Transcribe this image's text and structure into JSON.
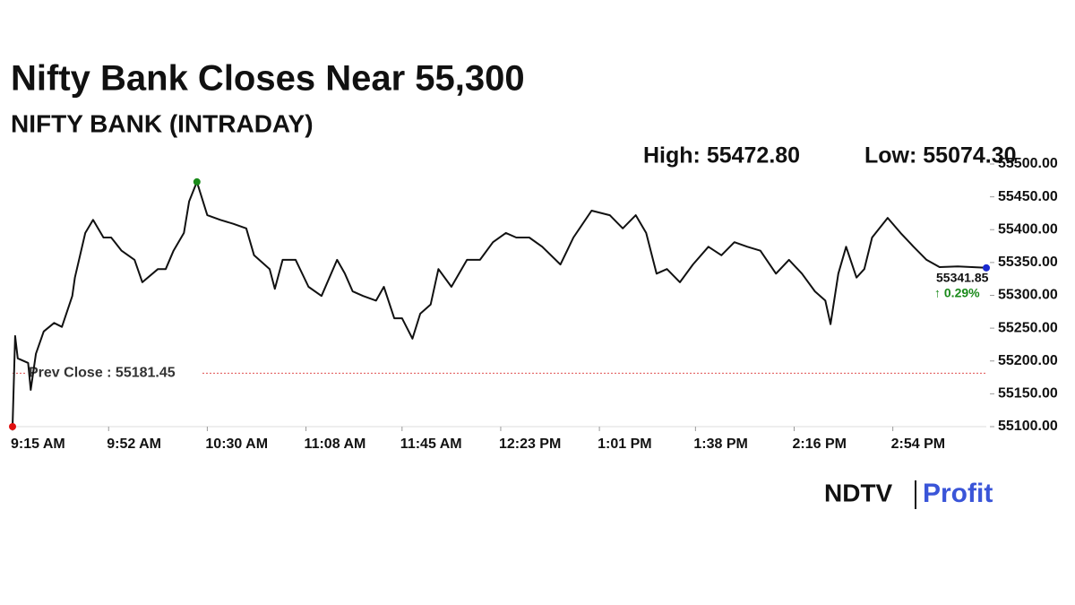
{
  "chart_data": {
    "type": "line",
    "title": "Nifty Bank Closes Near 55,300",
    "subtitle": "NIFTY BANK (INTRADAY)",
    "high_label": "High: 55472.80",
    "low_label": "Low: 55074.30",
    "last_label": "55341.85",
    "change_label": "↑ 0.29%",
    "reference": {
      "label": "Prev Close : 55181.45",
      "value": 55181.45,
      "color": "#e05050"
    },
    "color": "#111111",
    "x": [
      555,
      556,
      557,
      561,
      562,
      564,
      567,
      571,
      574,
      578,
      579,
      583,
      586,
      590,
      593,
      597,
      602,
      605,
      611,
      614,
      617,
      621,
      623,
      626,
      630,
      635,
      640,
      645,
      648,
      654,
      656,
      659,
      664,
      669,
      674,
      680,
      683,
      686,
      690,
      695,
      698,
      702,
      705,
      709,
      712,
      716,
      719,
      724,
      730,
      735,
      740,
      745,
      749,
      754,
      759,
      766,
      771,
      778,
      785,
      790,
      795,
      799,
      803,
      807,
      812,
      817,
      823,
      828,
      833,
      838,
      843,
      849,
      854,
      859,
      864,
      868,
      870,
      873,
      876,
      880,
      883,
      886,
      892,
      897,
      902,
      907,
      912,
      919,
      930
    ],
    "values": [
      55100,
      55238,
      55204,
      55197,
      55156,
      55211,
      55245,
      55258,
      55252,
      55299,
      55327,
      55395,
      55415,
      55388,
      55388,
      55368,
      55354,
      55320,
      55340,
      55340,
      55368,
      55395,
      55443,
      55472.8,
      55422,
      55415,
      55409,
      55402,
      55361,
      55340,
      55310,
      55354,
      55354,
      55313,
      55299,
      55354,
      55333,
      55306,
      55299,
      55292,
      55313,
      55265,
      55265,
      55234,
      55272,
      55286,
      55340,
      55313,
      55354,
      55354,
      55381,
      55395,
      55388,
      55388,
      55374,
      55347,
      55388,
      55429,
      55422,
      55402,
      55422,
      55395,
      55333,
      55340,
      55320,
      55347,
      55374,
      55361,
      55381,
      55374,
      55368,
      55333,
      55354,
      55333,
      55306,
      55292,
      55256,
      55333,
      55374,
      55327,
      55340,
      55388,
      55418,
      55395,
      55374,
      55354,
      55343,
      55344,
      55341.85
    ],
    "markers": [
      {
        "index": 0,
        "color": "#e01010"
      },
      {
        "index": 23,
        "color": "#1a8a1a"
      },
      {
        "index": 88,
        "color": "#1a2ad0"
      }
    ],
    "xlim": [
      555,
      930
    ],
    "xticks": [
      {
        "value": 555,
        "label": "9:15 AM"
      },
      {
        "value": 592,
        "label": "9:52 AM"
      },
      {
        "value": 630,
        "label": "10:30 AM"
      },
      {
        "value": 668,
        "label": "11:08 AM"
      },
      {
        "value": 705,
        "label": "11:45 AM"
      },
      {
        "value": 743,
        "label": "12:23 PM"
      },
      {
        "value": 781,
        "label": "1:01 PM"
      },
      {
        "value": 818,
        "label": "1:38 PM"
      },
      {
        "value": 856,
        "label": "2:16 PM"
      },
      {
        "value": 894,
        "label": "2:54 PM"
      }
    ],
    "ylim": [
      55100,
      55500
    ],
    "yticks": [
      {
        "value": 55100,
        "label": "55100.00"
      },
      {
        "value": 55150,
        "label": "55150.00"
      },
      {
        "value": 55200,
        "label": "55200.00"
      },
      {
        "value": 55250,
        "label": "55250.00"
      },
      {
        "value": 55300,
        "label": "55300.00"
      },
      {
        "value": 55350,
        "label": "55350.00"
      },
      {
        "value": 55400,
        "label": "55400.00"
      },
      {
        "value": 55450,
        "label": "55450.00"
      },
      {
        "value": 55500,
        "label": "55500.00"
      }
    ]
  },
  "logo": {
    "left": "NDTV",
    "right": "Profit"
  }
}
